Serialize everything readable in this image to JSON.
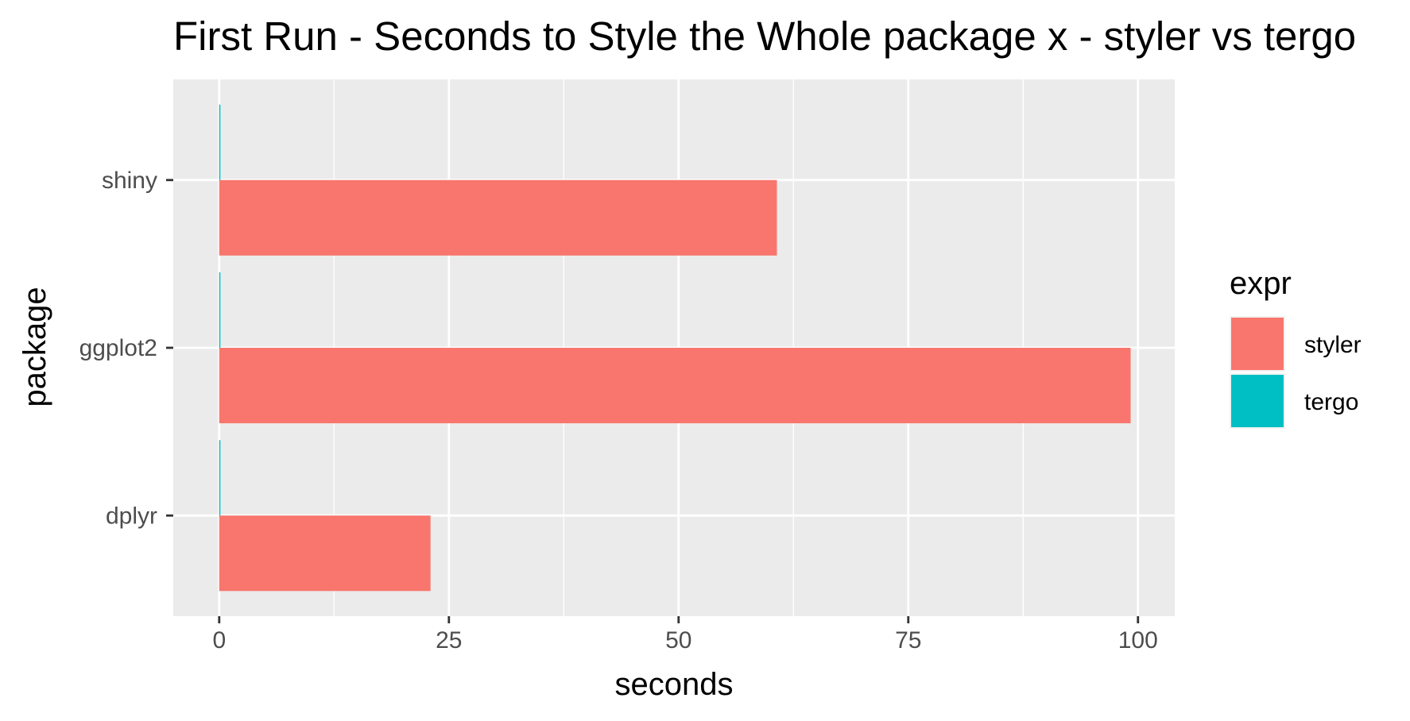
{
  "chart_data": {
    "type": "bar",
    "orientation": "horizontal",
    "title": "First Run - Seconds to Style the Whole package x - styler vs tergo",
    "xlabel": "seconds",
    "ylabel": "package",
    "categories": [
      "dplyr",
      "ggplot2",
      "shiny"
    ],
    "series": [
      {
        "name": "styler",
        "color": "#F8766D",
        "values": [
          23.0,
          99.2,
          60.7
        ]
      },
      {
        "name": "tergo",
        "color": "#00BFC4",
        "values": [
          0.08,
          0.08,
          0.08
        ]
      }
    ],
    "xlim": [
      -5,
      104
    ],
    "xticks": [
      0,
      25,
      50,
      75,
      100
    ],
    "xtick_labels": [
      "0",
      "25",
      "50",
      "75",
      "100"
    ],
    "grid": true,
    "panel_background": "#EBEBEB",
    "legend": {
      "title": "expr",
      "position": "right"
    }
  }
}
